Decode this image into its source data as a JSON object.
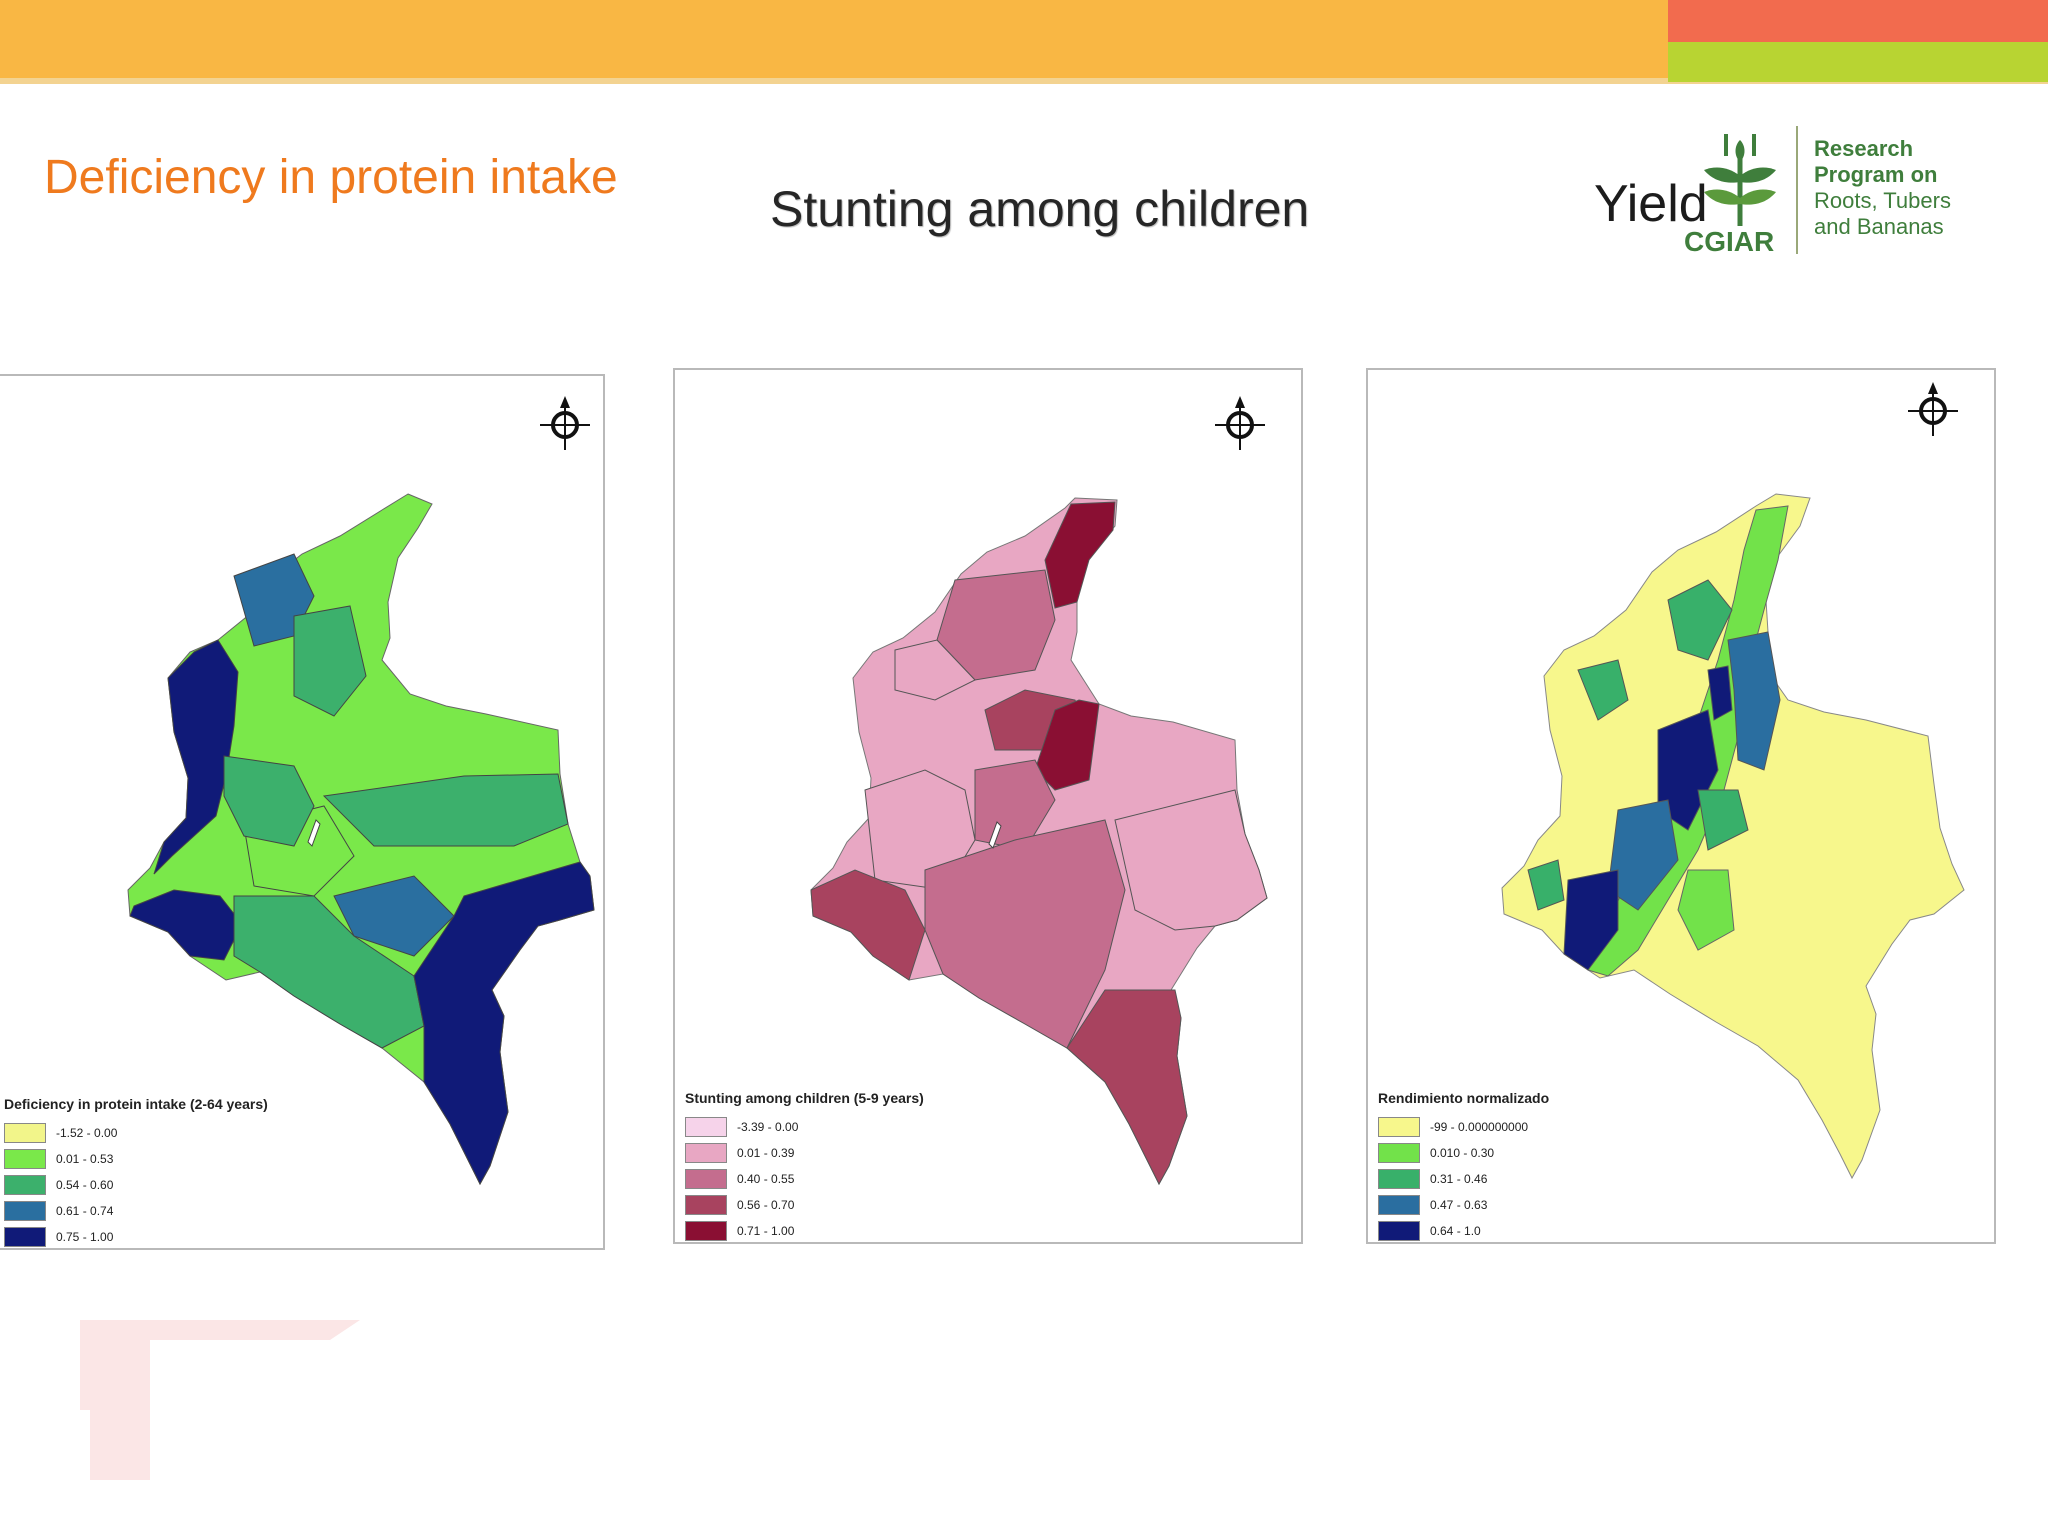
{
  "slide": {
    "heading": "Deficiency in protein intake",
    "title": "Stunting among children"
  },
  "logo": {
    "wordmark": "Yield",
    "org": "CGIAR",
    "text_lines": [
      "Research",
      "Program on",
      "Roots, Tubers",
      "and Bananas"
    ]
  },
  "maps": [
    {
      "legend_title": "Deficiency in protein intake (2-64 years)",
      "classes": [
        {
          "label": "-1.52 - 0.00",
          "color": "#f2f58a"
        },
        {
          "label": "0.01 - 0.53",
          "color": "#7ae84a"
        },
        {
          "label": "0.54 - 0.60",
          "color": "#3cb06c"
        },
        {
          "label": "0.61 - 0.74",
          "color": "#2a6fa0"
        },
        {
          "label": "0.75 - 1.00",
          "color": "#101a78"
        }
      ]
    },
    {
      "legend_title": "Stunting among children (5-9 years)",
      "classes": [
        {
          "label": "-3.39 - 0.00",
          "color": "#f6d3ea"
        },
        {
          "label": "0.01 - 0.39",
          "color": "#e8a7c3"
        },
        {
          "label": "0.40 - 0.55",
          "color": "#c46d8e"
        },
        {
          "label": "0.56 - 0.70",
          "color": "#a8435f"
        },
        {
          "label": "0.71 - 1.00",
          "color": "#8a0f33"
        }
      ]
    },
    {
      "legend_title": "Rendimiento normalizado",
      "classes": [
        {
          "label": "-99 - 0.000000000",
          "color": "#f7f78c"
        },
        {
          "label": "0.010 - 0.30",
          "color": "#72e24a"
        },
        {
          "label": "0.31 - 0.46",
          "color": "#38b06a"
        },
        {
          "label": "0.47 - 0.63",
          "color": "#2a6ea0"
        },
        {
          "label": "0.64 - 1.0",
          "color": "#101a78"
        }
      ]
    }
  ]
}
